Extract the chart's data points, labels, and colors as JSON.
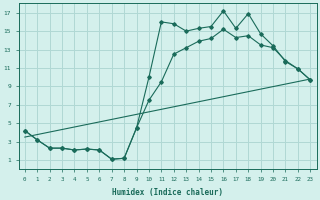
{
  "bg_color": "#d4f0ec",
  "grid_color": "#b0d8d4",
  "line_color": "#1a6b5a",
  "xlabel": "Humidex (Indice chaleur)",
  "xlim": [
    -0.5,
    23.5
  ],
  "ylim": [
    0,
    18
  ],
  "xticks": [
    0,
    1,
    2,
    3,
    4,
    5,
    6,
    7,
    8,
    9,
    10,
    11,
    12,
    13,
    14,
    15,
    16,
    17,
    18,
    19,
    20,
    21,
    22,
    23
  ],
  "yticks": [
    1,
    3,
    5,
    7,
    9,
    11,
    13,
    15,
    17
  ],
  "series1_x": [
    0,
    1,
    2,
    3,
    4,
    5,
    6,
    7,
    8,
    9,
    10,
    11,
    12,
    13,
    14,
    15,
    16,
    17,
    18,
    19,
    20,
    21,
    22,
    23
  ],
  "series1_y": [
    4.2,
    3.2,
    2.3,
    2.3,
    2.1,
    2.2,
    2.1,
    1.1,
    1.2,
    4.5,
    10.0,
    16.0,
    15.8,
    15.0,
    15.3,
    15.5,
    17.2,
    15.3,
    16.9,
    14.7,
    13.4,
    11.7,
    10.9,
    9.7
  ],
  "series2_x": [
    0,
    1,
    2,
    3,
    4,
    5,
    6,
    7,
    8,
    9,
    10,
    11,
    12,
    13,
    14,
    15,
    16,
    17,
    18,
    19,
    20,
    21,
    22,
    23
  ],
  "series2_y": [
    4.2,
    3.2,
    2.3,
    2.3,
    2.1,
    2.2,
    2.1,
    1.1,
    1.2,
    4.5,
    7.5,
    9.5,
    12.5,
    13.2,
    13.9,
    14.2,
    15.2,
    14.3,
    14.5,
    13.5,
    13.2,
    11.8,
    10.9,
    9.7
  ],
  "series3_x": [
    0,
    23
  ],
  "series3_y": [
    3.5,
    9.8
  ]
}
